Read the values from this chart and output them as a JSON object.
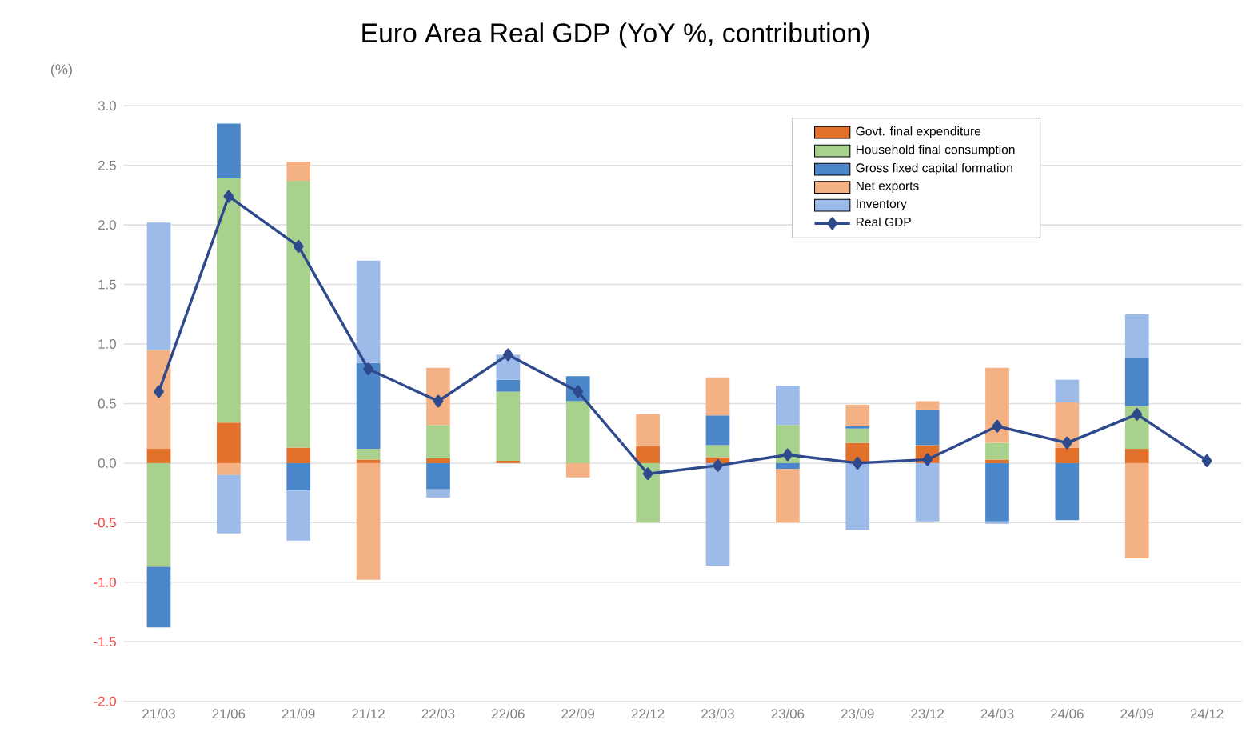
{
  "chart_data": {
    "type": "bar",
    "stacked": true,
    "title": "Euro Area Real GDP (YoY %, contribution)",
    "ylabel": "(%)",
    "categories": [
      "21/03",
      "21/06",
      "21/09",
      "21/12",
      "22/03",
      "22/06",
      "22/09",
      "22/12",
      "23/03",
      "23/06",
      "23/09",
      "23/12",
      "24/03",
      "24/06",
      "24/09",
      "24/12"
    ],
    "ylim": [
      -2,
      3
    ],
    "yticks": [
      {
        "value": -2,
        "label": "-2.0"
      },
      {
        "value": -1.5,
        "label": "-1.5"
      },
      {
        "value": -1,
        "label": "-1.0"
      },
      {
        "value": -0.5,
        "label": "-0.5"
      },
      {
        "value": 0,
        "label": "0.0"
      },
      {
        "value": 0.5,
        "label": "0.5"
      },
      {
        "value": 1,
        "label": "1.0"
      },
      {
        "value": 1.5,
        "label": "1.5"
      },
      {
        "value": 2,
        "label": "2.0"
      },
      {
        "value": 2.5,
        "label": "2.5"
      },
      {
        "value": 3,
        "label": "3.0"
      }
    ],
    "grid": "y",
    "legend": "top right",
    "marker": "diamond",
    "series": [
      {
        "name": "Govt. final expenditure",
        "color": "#e0702a",
        "values": [
          0.12,
          0.34,
          0.13,
          0.03,
          0.04,
          0.02,
          0,
          0.14,
          0.05,
          0,
          0.17,
          0.15,
          0.03,
          0.13,
          0.12,
          null
        ]
      },
      {
        "name": "Household final consumption",
        "color": "#a9d18e",
        "values": [
          -0.87,
          2.05,
          2.24,
          0.09,
          0.28,
          0.58,
          0.52,
          -0.5,
          0.1,
          0.32,
          0.12,
          0,
          0.14,
          0,
          0.36,
          null
        ]
      },
      {
        "name": "Gross fixed capital formation",
        "color": "#4a86c8",
        "values": [
          -0.51,
          0.46,
          -0.23,
          0.72,
          -0.22,
          0.1,
          0.21,
          0,
          0.25,
          -0.05,
          0.02,
          0.3,
          -0.49,
          -0.48,
          0.4,
          null
        ]
      },
      {
        "name": "Net exports",
        "color": "#f4b183",
        "values": [
          0.83,
          -0.1,
          0.16,
          -0.98,
          0.48,
          0,
          -0.12,
          0.27,
          0.32,
          -0.45,
          0.18,
          0.07,
          0.63,
          0.38,
          -0.8,
          null
        ]
      },
      {
        "name": "Inventory",
        "color": "#9dbbe8",
        "values": [
          1.07,
          -0.49,
          -0.42,
          0.86,
          -0.07,
          0.21,
          0,
          0,
          -0.86,
          0.33,
          -0.56,
          -0.49,
          -0.02,
          0.19,
          0.37,
          null
        ]
      },
      {
        "name": "Real GDP",
        "type": "line",
        "color": "#2e4a8c",
        "values": [
          0.6,
          2.24,
          1.82,
          0.79,
          0.52,
          0.91,
          0.6,
          -0.09,
          -0.02,
          0.07,
          0,
          0.03,
          0.31,
          0.17,
          0.41,
          0.02
        ]
      }
    ]
  }
}
